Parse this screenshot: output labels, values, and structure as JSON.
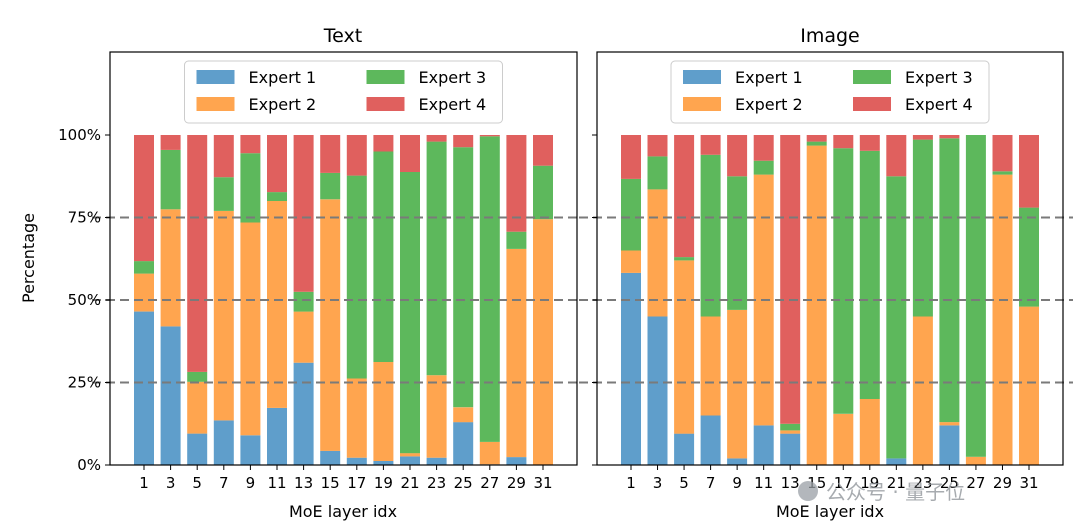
{
  "figure": {
    "ylabel": "Percentage",
    "watermark": "公众号 · 量子位"
  },
  "legend": [
    {
      "name": "Expert 1",
      "color": "#5f9ecb"
    },
    {
      "name": "Expert 2",
      "color": "#ffa54f"
    },
    {
      "name": "Expert 3",
      "color": "#5db85c"
    },
    {
      "name": "Expert 4",
      "color": "#e0605e"
    }
  ],
  "chart_data": [
    {
      "type": "bar",
      "stacked": true,
      "title": "Text",
      "xlabel": "MoE layer idx",
      "ylabel": "Percentage",
      "ylim": [
        0,
        100
      ],
      "yticks": [
        "0%",
        "25%",
        "50%",
        "75%",
        "100%"
      ],
      "categories": [
        "1",
        "3",
        "5",
        "7",
        "9",
        "11",
        "13",
        "15",
        "17",
        "19",
        "21",
        "23",
        "25",
        "27",
        "29",
        "31"
      ],
      "series": [
        {
          "name": "Expert 1",
          "values": [
            46.5,
            42,
            9.5,
            13.5,
            9,
            17.3,
            31,
            4.3,
            2.2,
            1.2,
            2.6,
            2.2,
            13,
            0.2,
            2.4,
            0.1
          ]
        },
        {
          "name": "Expert 2",
          "values": [
            11.5,
            35.5,
            15.7,
            63.5,
            64.5,
            62.7,
            15.5,
            76.2,
            24,
            30,
            1,
            25,
            4.5,
            6.8,
            63.1,
            74.4
          ]
        },
        {
          "name": "Expert 3",
          "values": [
            3.8,
            18,
            3,
            10.2,
            21,
            2.7,
            6,
            8,
            61.5,
            63.8,
            85.2,
            70.8,
            78.8,
            92.6,
            5.2,
            16.2
          ]
        },
        {
          "name": "Expert 4",
          "values": [
            38.2,
            4.5,
            71.8,
            12.8,
            5.5,
            17.3,
            47.5,
            11.5,
            12.3,
            5,
            11.2,
            2,
            3.7,
            0.4,
            29.3,
            9.3
          ]
        }
      ],
      "grid": "dashed horizontal at 25%, 50%, 75%",
      "legend_position": "top-center, 2 columns"
    },
    {
      "type": "bar",
      "stacked": true,
      "title": "Image",
      "xlabel": "MoE layer idx",
      "ylim": [
        0,
        100
      ],
      "categories": [
        "1",
        "3",
        "5",
        "7",
        "9",
        "11",
        "13",
        "15",
        "17",
        "19",
        "21",
        "23",
        "25",
        "27",
        "29",
        "31"
      ],
      "series": [
        {
          "name": "Expert 1",
          "values": [
            58.2,
            45,
            9.5,
            15,
            2,
            12,
            9.5,
            0,
            0,
            0,
            2,
            0,
            12,
            0,
            0,
            0
          ]
        },
        {
          "name": "Expert 2",
          "values": [
            6.8,
            38.5,
            52.5,
            30,
            45,
            76,
            1,
            96.8,
            15.5,
            20,
            0,
            45,
            1,
            2.5,
            88,
            48
          ]
        },
        {
          "name": "Expert 3",
          "values": [
            21.7,
            10,
            1,
            49,
            40.5,
            4.2,
            2,
            1.2,
            80.5,
            75.2,
            85.5,
            53.6,
            86,
            97.5,
            1,
            30
          ]
        },
        {
          "name": "Expert 4",
          "values": [
            13.3,
            6.5,
            37,
            6,
            12.5,
            7.8,
            87.5,
            2,
            4,
            4.8,
            12.5,
            1.4,
            1,
            0,
            11,
            22
          ]
        }
      ],
      "grid": "dashed horizontal at 25%, 50%, 75%",
      "legend_position": "top-center, 2 columns"
    }
  ]
}
